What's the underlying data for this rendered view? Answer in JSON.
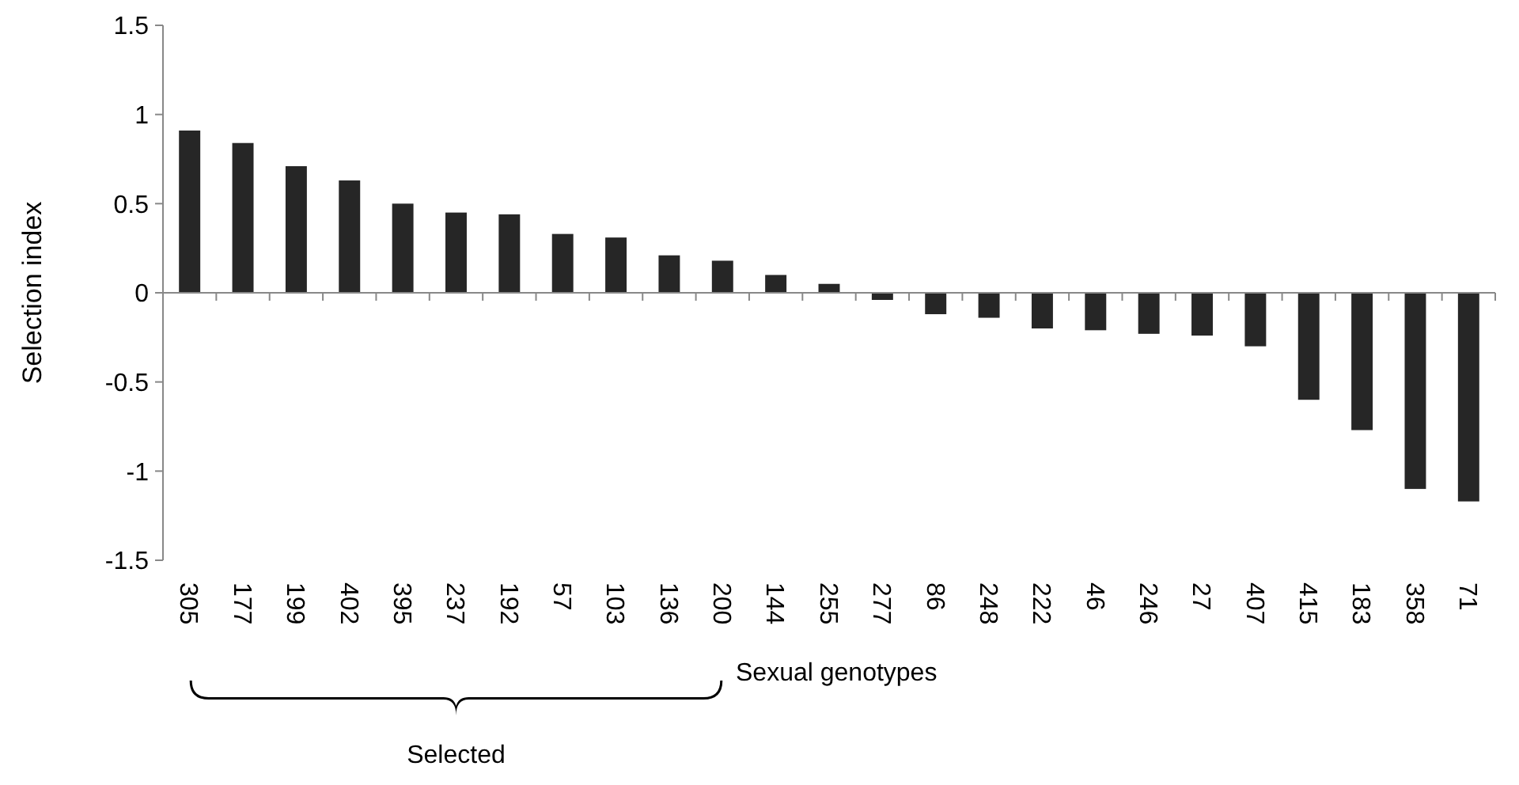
{
  "chart_data": {
    "type": "bar",
    "xlabel": "Sexual genotypes",
    "ylabel": "Selection index",
    "categories": [
      "305",
      "177",
      "199",
      "402",
      "395",
      "237",
      "192",
      "57",
      "103",
      "136",
      "200",
      "144",
      "255",
      "277",
      "86",
      "248",
      "222",
      "46",
      "246",
      "27",
      "407",
      "415",
      "183",
      "358",
      "71"
    ],
    "values": [
      0.91,
      0.84,
      0.71,
      0.63,
      0.5,
      0.45,
      0.44,
      0.33,
      0.31,
      0.21,
      0.18,
      0.1,
      0.05,
      -0.04,
      -0.12,
      -0.14,
      -0.2,
      -0.21,
      -0.23,
      -0.24,
      -0.3,
      -0.6,
      -0.77,
      -1.1,
      -1.17
    ],
    "color": "#262626",
    "ylim": [
      -1.5,
      1.5
    ],
    "yticks": [
      {
        "value": -1.5,
        "label": "-1.5"
      },
      {
        "value": -1,
        "label": "-1"
      },
      {
        "value": -0.5,
        "label": "-0.5"
      },
      {
        "value": 0,
        "label": "0"
      },
      {
        "value": 0.5,
        "label": "0.5"
      },
      {
        "value": 1,
        "label": "1"
      },
      {
        "value": 1.5,
        "label": "1.5"
      }
    ],
    "annotations": [
      "Selected"
    ]
  }
}
